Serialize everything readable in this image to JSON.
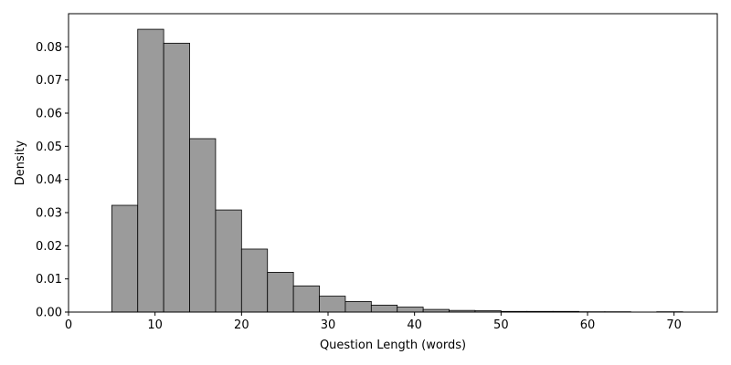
{
  "chart_data": {
    "type": "bar",
    "title": "",
    "xlabel": "Question Length (words)",
    "ylabel": "Density",
    "xlim": [
      0,
      75
    ],
    "ylim": [
      0,
      0.09
    ],
    "x_ticks": [
      0,
      10,
      20,
      30,
      40,
      50,
      60,
      70
    ],
    "x_tick_labels": [
      "0",
      "10",
      "20",
      "30",
      "40",
      "50",
      "60",
      "70"
    ],
    "y_ticks": [
      0,
      0.01,
      0.02,
      0.03,
      0.04,
      0.05,
      0.06,
      0.07,
      0.08
    ],
    "y_tick_labels": [
      "0.00",
      "0.01",
      "0.02",
      "0.03",
      "0.04",
      "0.05",
      "0.06",
      "0.07",
      "0.08"
    ],
    "grid": false,
    "bar_color": "#9b9b9b",
    "edge_color": "#000000",
    "bins": [
      {
        "x0": 5.0,
        "x1": 8.0,
        "value": 0.0322
      },
      {
        "x0": 8.0,
        "x1": 11.0,
        "value": 0.0853
      },
      {
        "x0": 11.0,
        "x1": 14.0,
        "value": 0.0811
      },
      {
        "x0": 14.0,
        "x1": 17.0,
        "value": 0.0523
      },
      {
        "x0": 17.0,
        "x1": 20.0,
        "value": 0.0308
      },
      {
        "x0": 20.0,
        "x1": 23.0,
        "value": 0.019
      },
      {
        "x0": 23.0,
        "x1": 26.0,
        "value": 0.012
      },
      {
        "x0": 26.0,
        "x1": 29.0,
        "value": 0.0079
      },
      {
        "x0": 29.0,
        "x1": 32.0,
        "value": 0.0048
      },
      {
        "x0": 32.0,
        "x1": 35.0,
        "value": 0.0032
      },
      {
        "x0": 35.0,
        "x1": 38.0,
        "value": 0.0021
      },
      {
        "x0": 38.0,
        "x1": 41.0,
        "value": 0.0015
      },
      {
        "x0": 41.0,
        "x1": 44.0,
        "value": 0.0008
      },
      {
        "x0": 44.0,
        "x1": 47.0,
        "value": 0.0005
      },
      {
        "x0": 47.0,
        "x1": 50.0,
        "value": 0.0004
      },
      {
        "x0": 50.0,
        "x1": 53.0,
        "value": 0.0002
      },
      {
        "x0": 53.0,
        "x1": 56.0,
        "value": 0.0002
      },
      {
        "x0": 56.0,
        "x1": 59.0,
        "value": 0.0002
      },
      {
        "x0": 59.0,
        "x1": 62.0,
        "value": 0.0001
      },
      {
        "x0": 62.0,
        "x1": 65.0,
        "value": 0.0001
      },
      {
        "x0": 65.0,
        "x1": 68.0,
        "value": 0.0
      },
      {
        "x0": 68.0,
        "x1": 71.0,
        "value": 0.0001
      }
    ]
  }
}
